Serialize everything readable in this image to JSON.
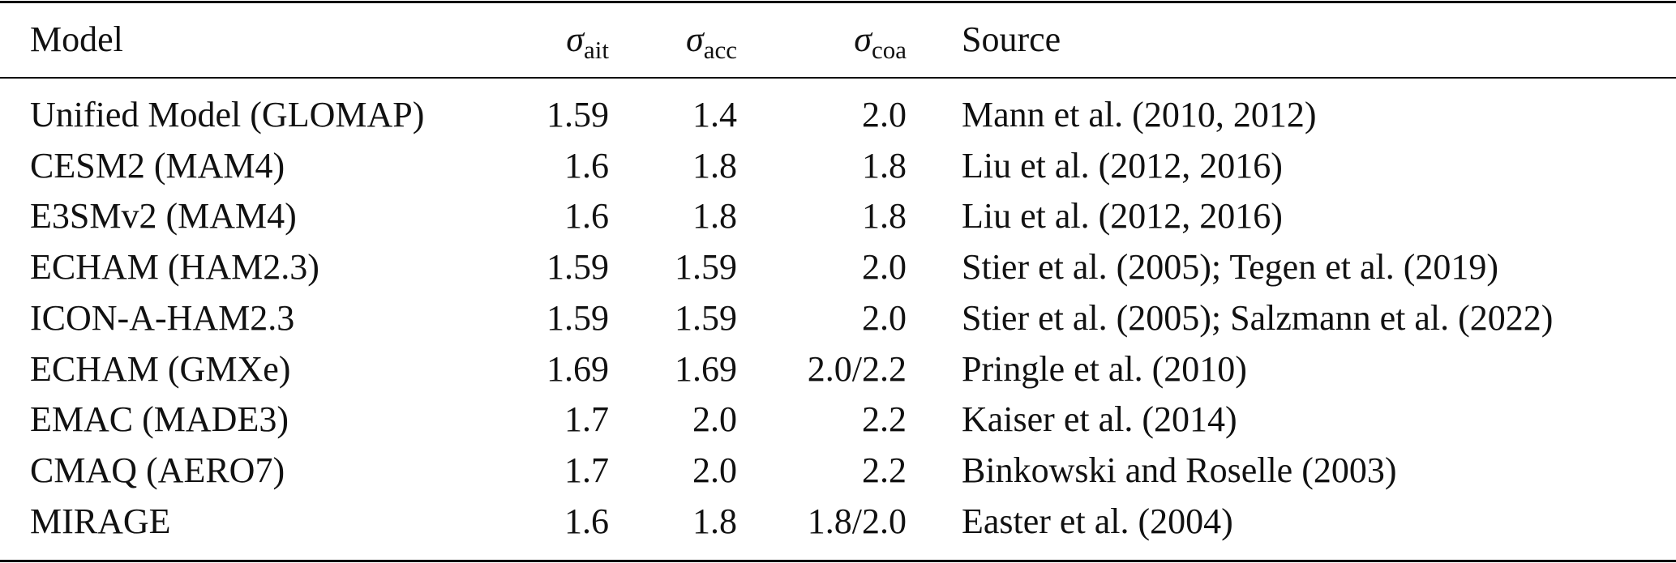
{
  "table": {
    "header": [
      "Model",
      {
        "symbol": "σ",
        "sub": "ait"
      },
      {
        "symbol": "σ",
        "sub": "acc"
      },
      {
        "symbol": "σ",
        "sub": "coa"
      },
      "Source"
    ],
    "rows": [
      [
        "Unified Model (GLOMAP)",
        "1.59",
        "1.4",
        "2.0",
        "Mann et al. (2010, 2012)"
      ],
      [
        "CESM2 (MAM4)",
        "1.6",
        "1.8",
        "1.8",
        "Liu et al. (2012, 2016)"
      ],
      [
        "E3SMv2 (MAM4)",
        "1.6",
        "1.8",
        "1.8",
        "Liu et al. (2012, 2016)"
      ],
      [
        "ECHAM (HAM2.3)",
        "1.59",
        "1.59",
        "2.0",
        "Stier et al. (2005); Tegen et al. (2019)"
      ],
      [
        "ICON-A-HAM2.3",
        "1.59",
        "1.59",
        "2.0",
        "Stier et al. (2005); Salzmann et al. (2022)"
      ],
      [
        "ECHAM (GMXe)",
        "1.69",
        "1.69",
        "2.0/2.2",
        "Pringle et al. (2010)"
      ],
      [
        "EMAC (MADE3)",
        "1.7",
        "2.0",
        "2.2",
        "Kaiser et al. (2014)"
      ],
      [
        "CMAQ (AERO7)",
        "1.7",
        "2.0",
        "2.2",
        "Binkowski and Roselle (2003)"
      ],
      [
        "MIRAGE",
        "1.6",
        "1.8",
        "1.8/2.0",
        "Easter et al. (2004)"
      ]
    ]
  }
}
